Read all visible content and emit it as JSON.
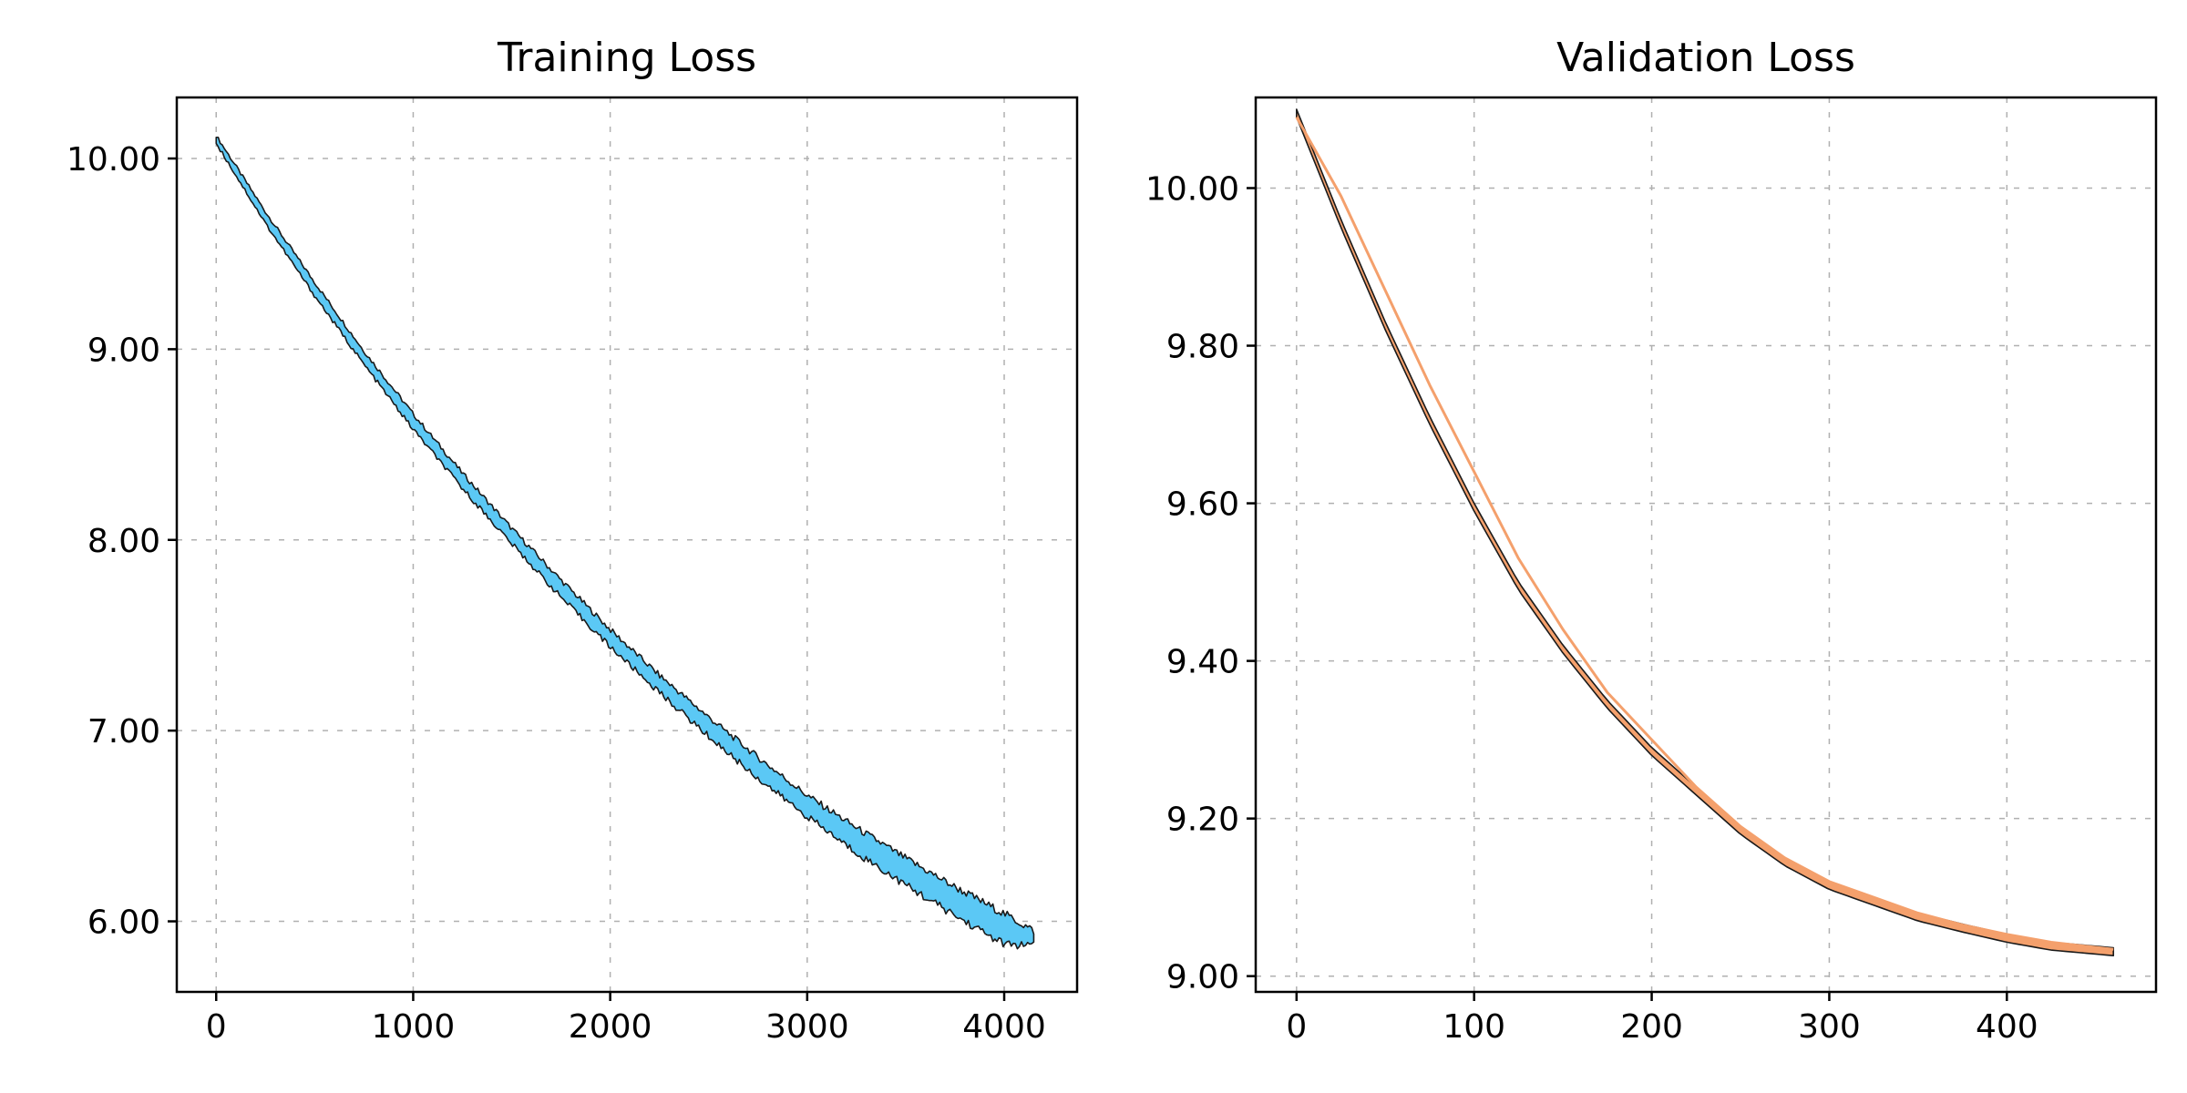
{
  "colors": {
    "train_fill": "#5bc8f5",
    "val_fill": "#f4a06c",
    "val_line": "#f4a06c",
    "edge": "#1a1a1a"
  },
  "chart_data": [
    {
      "type": "area",
      "title": "Training Loss",
      "xlabel": "",
      "ylabel": "",
      "xlim": [
        -200,
        4370
      ],
      "ylim": [
        5.63,
        10.32
      ],
      "xticks": [
        0,
        1000,
        2000,
        3000,
        4000
      ],
      "yticks": [
        6.0,
        7.0,
        8.0,
        9.0,
        10.0
      ],
      "xtick_labels": [
        "0",
        "1000",
        "2000",
        "3000",
        "4000"
      ],
      "ytick_labels": [
        "6.00",
        "7.00",
        "8.00",
        "9.00",
        "10.00"
      ],
      "grid": true,
      "series": [
        {
          "style": "band",
          "x": [
            0,
            250,
            500,
            750,
            1000,
            1250,
            1500,
            1750,
            2000,
            2250,
            2500,
            2750,
            3000,
            3250,
            3500,
            3750,
            4000,
            4150
          ],
          "upper": [
            10.12,
            9.72,
            9.35,
            8.99,
            8.66,
            8.35,
            8.06,
            7.79,
            7.53,
            7.29,
            7.07,
            6.86,
            6.66,
            6.49,
            6.33,
            6.18,
            6.04,
            5.95
          ],
          "lower": [
            10.08,
            9.66,
            9.28,
            8.92,
            8.58,
            8.27,
            7.98,
            7.7,
            7.44,
            7.2,
            6.97,
            6.75,
            6.55,
            6.36,
            6.19,
            6.03,
            5.88,
            5.87
          ]
        }
      ]
    },
    {
      "type": "area",
      "title": "Validation Loss",
      "xlabel": "",
      "ylabel": "",
      "xlim": [
        -23,
        484
      ],
      "ylim": [
        8.98,
        10.115
      ],
      "xticks": [
        0,
        100,
        200,
        300,
        400
      ],
      "yticks": [
        9.0,
        9.2,
        9.4,
        9.6,
        9.8,
        10.0
      ],
      "xtick_labels": [
        "0",
        "100",
        "200",
        "300",
        "400"
      ],
      "ytick_labels": [
        "9.00",
        "9.20",
        "9.40",
        "9.60",
        "9.80",
        "10.00"
      ],
      "grid": true,
      "series": [
        {
          "style": "band",
          "x": [
            0,
            25,
            50,
            75,
            100,
            125,
            150,
            175,
            200,
            225,
            250,
            275,
            300,
            325,
            350,
            375,
            400,
            425,
            460
          ],
          "upper": [
            10.1,
            9.96,
            9.83,
            9.71,
            9.6,
            9.5,
            9.42,
            9.35,
            9.29,
            9.24,
            9.19,
            9.15,
            9.12,
            9.1,
            9.08,
            9.066,
            9.053,
            9.043,
            9.036
          ],
          "lower": [
            10.09,
            9.95,
            9.82,
            9.7,
            9.59,
            9.49,
            9.41,
            9.34,
            9.28,
            9.23,
            9.18,
            9.14,
            9.11,
            9.09,
            9.07,
            9.056,
            9.043,
            9.033,
            9.026
          ]
        },
        {
          "style": "line",
          "x": [
            0,
            25,
            50,
            75,
            100,
            125,
            150,
            175,
            200,
            225,
            250,
            275,
            300,
            325,
            350,
            375,
            400,
            425,
            460
          ],
          "y": [
            10.09,
            9.99,
            9.87,
            9.75,
            9.64,
            9.53,
            9.44,
            9.36,
            9.3,
            9.24,
            9.19,
            9.15,
            9.12,
            9.1,
            9.08,
            9.065,
            9.053,
            9.043,
            9.034
          ]
        }
      ]
    }
  ]
}
